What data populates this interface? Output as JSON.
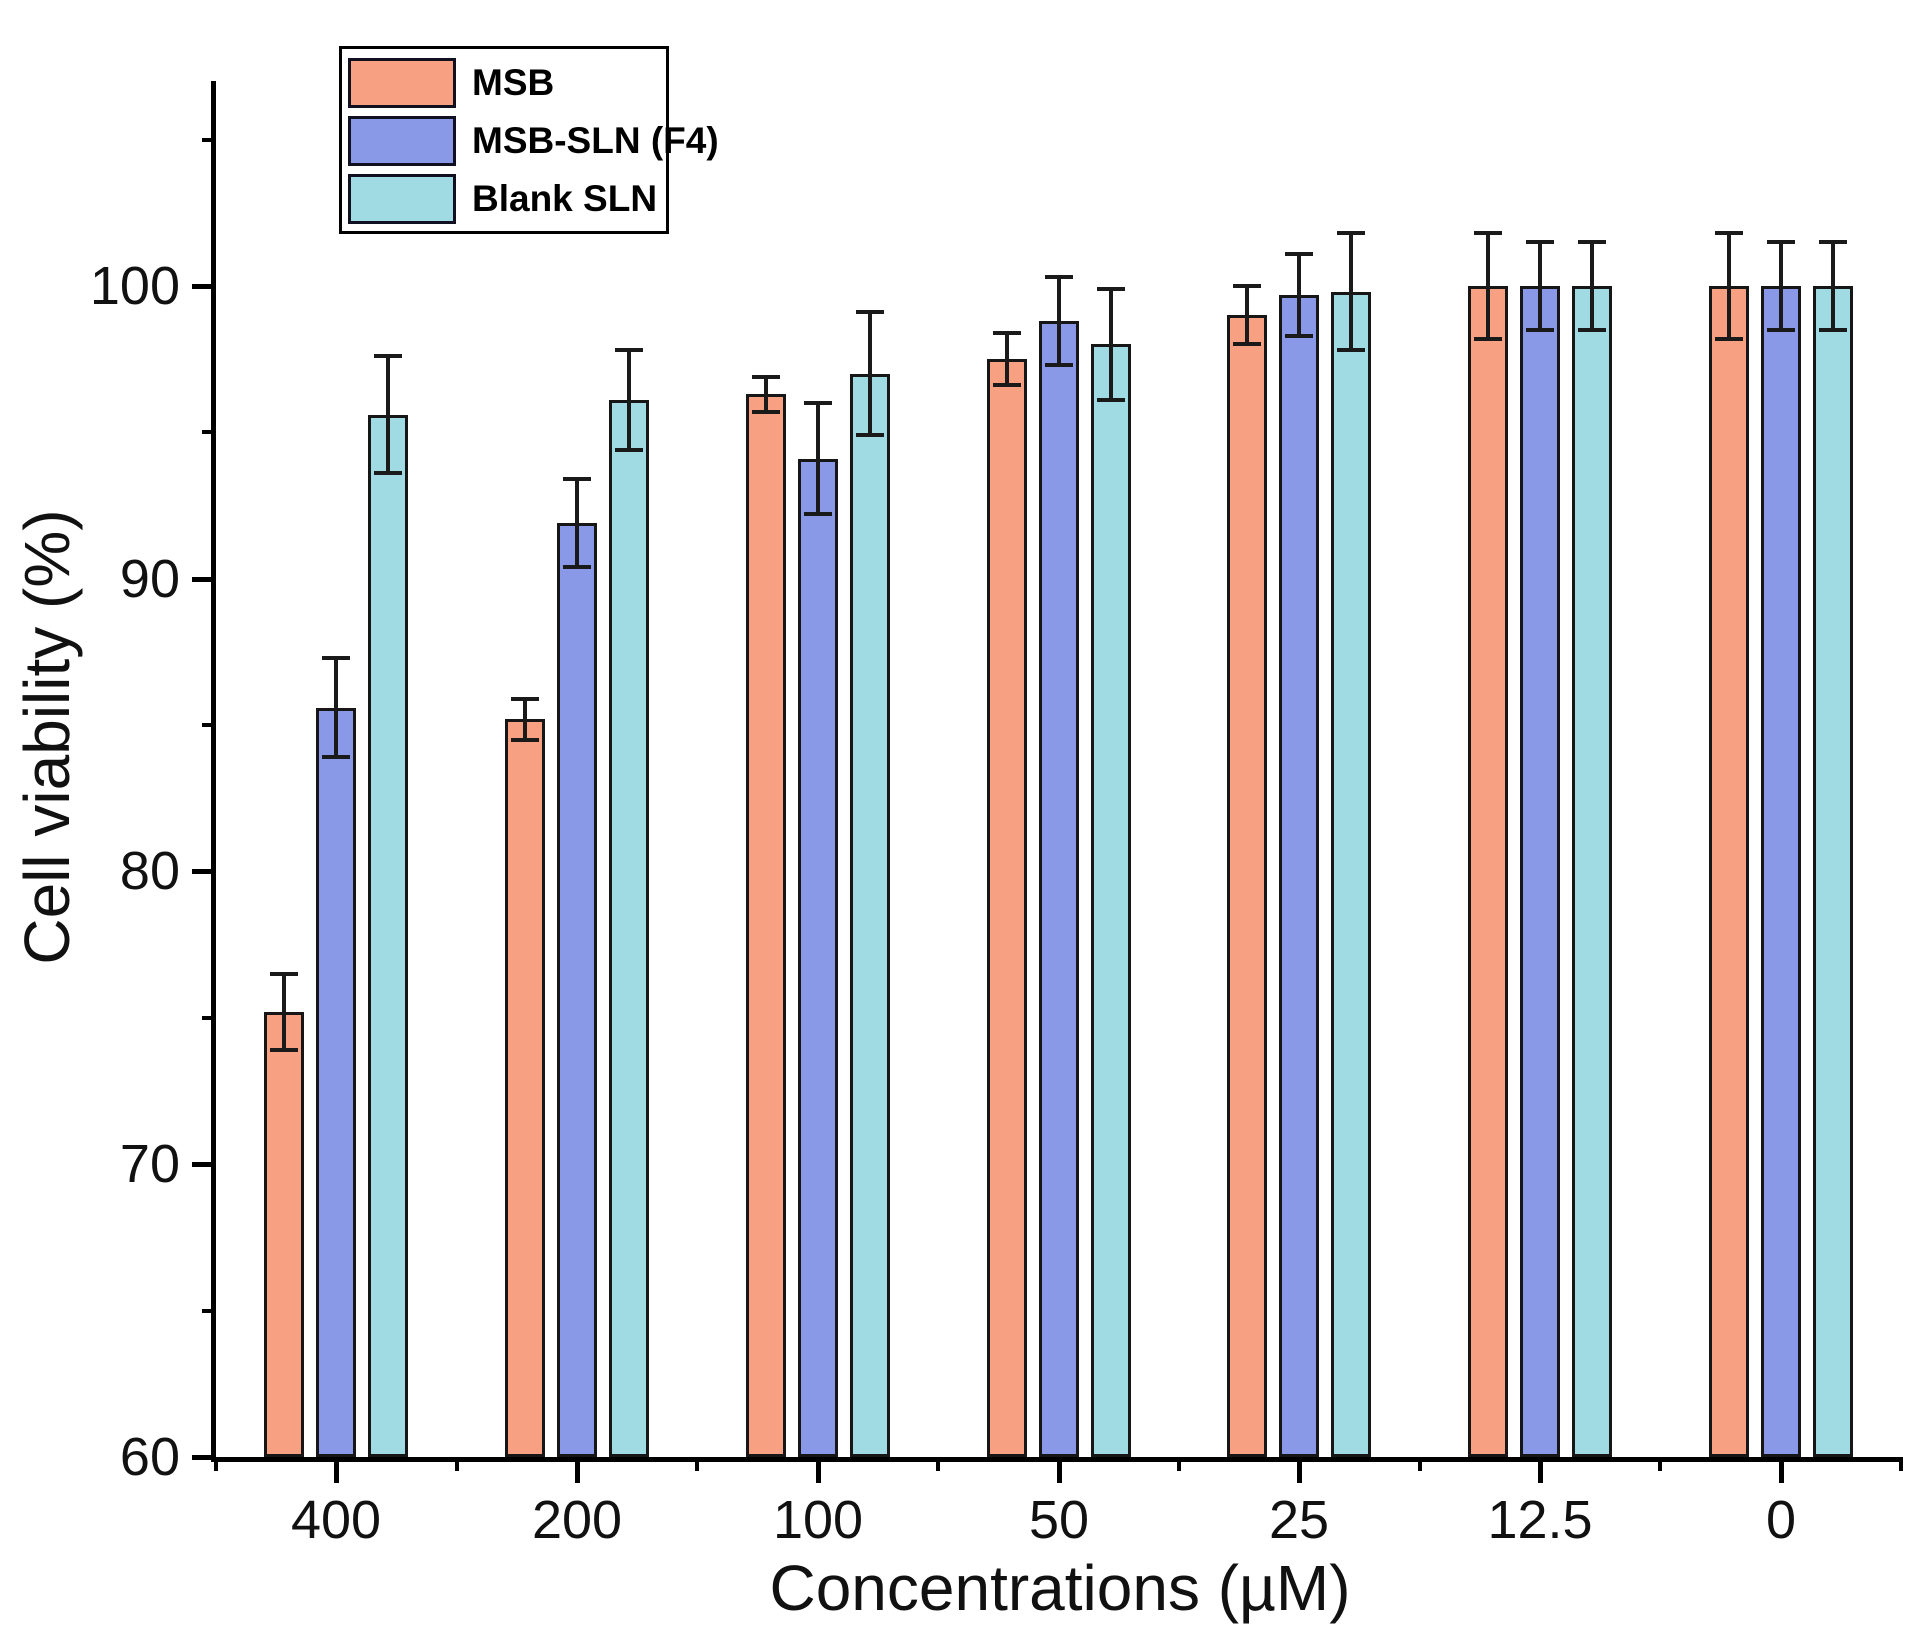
{
  "chart_data": {
    "type": "bar",
    "title": "",
    "xlabel": "Concentrations (µM)",
    "ylabel": "Cell viability (%)",
    "categories": [
      "400",
      "200",
      "100",
      "50",
      "25",
      "12.5",
      "0"
    ],
    "series": [
      {
        "name": "MSB",
        "color": "#F8A182",
        "values": [
          75.2,
          85.2,
          96.3,
          97.5,
          99.0,
          100.0,
          100.0
        ],
        "errors": [
          1.3,
          0.7,
          0.6,
          0.9,
          1.0,
          1.8,
          1.8
        ]
      },
      {
        "name": "MSB-SLN (F4)",
        "color": "#8A98E8",
        "values": [
          85.6,
          91.9,
          94.1,
          98.8,
          99.7,
          100.0,
          100.0
        ],
        "errors": [
          1.7,
          1.5,
          1.9,
          1.5,
          1.4,
          1.5,
          1.5
        ]
      },
      {
        "name": "Blank SLN",
        "color": "#A0DAE2",
        "values": [
          95.6,
          96.1,
          97.0,
          98.0,
          99.8,
          100.0,
          100.0
        ],
        "errors": [
          2.0,
          1.7,
          2.1,
          1.9,
          2.0,
          1.5,
          1.5
        ]
      }
    ],
    "ylim": [
      60,
      107
    ],
    "y_major_ticks": [
      60,
      70,
      80,
      90,
      100
    ],
    "y_minor_ticks": [
      65,
      75,
      85,
      95,
      105
    ],
    "grid": false,
    "legend_position": "top-left",
    "bar_border_color": "#161616",
    "error_bar_color": "#1a1a1a",
    "axis_color": "#000000",
    "background_color": "#ffffff"
  }
}
